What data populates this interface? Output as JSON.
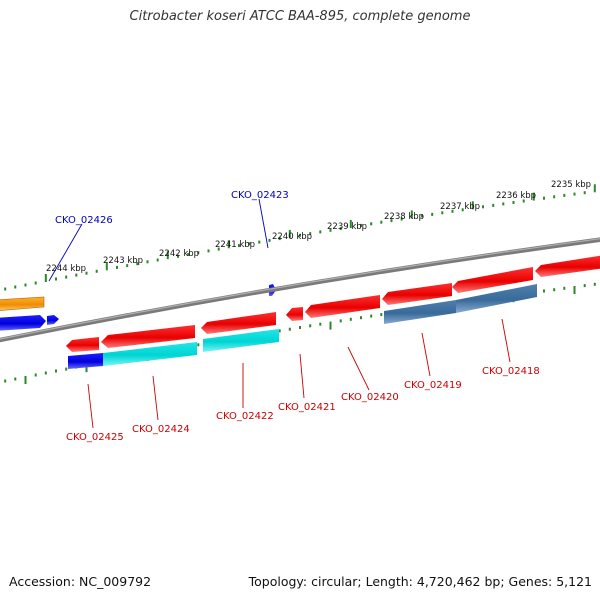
{
  "header": {
    "title": "Citrobacter koseri ATCC BAA-895, complete genome"
  },
  "footer": {
    "accession": "Accession: NC_009792",
    "summary": "Topology: circular; Length: 4,720,462 bp; Genes: 5,121"
  },
  "colors": {
    "backbone": "#777777",
    "ticks": "#2a8a2a",
    "forward_label": "#0000bb",
    "reverse_label": "#cc0000"
  },
  "scale_labels": [
    "2244 kbp",
    "2243 kbp",
    "2242 kbp",
    "2241 kbp",
    "2240 kbp",
    "2239 kbp",
    "2238 kbp",
    "2237 kbp",
    "2236 kbp",
    "2235 kbp"
  ],
  "gene_labels": {
    "forward": [
      "CKO_02426",
      "CKO_02423"
    ],
    "reverse": [
      "CKO_02425",
      "CKO_02424",
      "CKO_02422",
      "CKO_02421",
      "CKO_02420",
      "CKO_02419",
      "CKO_02418"
    ]
  }
}
